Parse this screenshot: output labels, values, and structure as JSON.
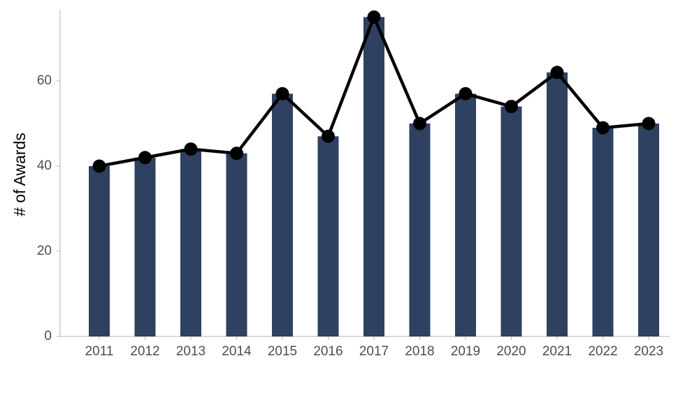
{
  "chart_data": {
    "type": "bar",
    "ylabel": "# of Awards",
    "categories": [
      "2011",
      "2012",
      "2013",
      "2014",
      "2015",
      "2016",
      "2017",
      "2018",
      "2019",
      "2020",
      "2021",
      "2022",
      "2023"
    ],
    "values": [
      40,
      42,
      44,
      43,
      57,
      47,
      75,
      50,
      57,
      54,
      62,
      49,
      50
    ],
    "color": "#2e4161",
    "line_overlay": true,
    "line_color": "#000000",
    "ylim": [
      0,
      76.5
    ],
    "yticks": [
      0,
      20,
      40,
      60
    ],
    "grid": false
  }
}
